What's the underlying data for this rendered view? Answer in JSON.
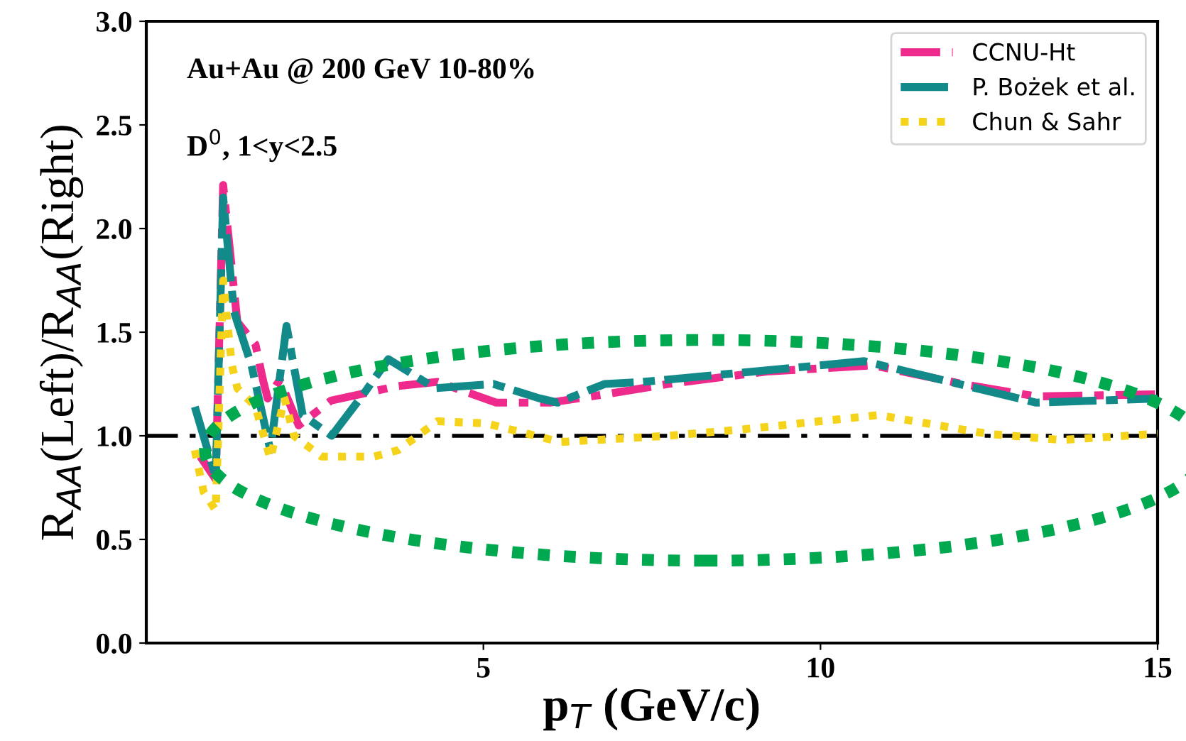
{
  "chart_data": {
    "type": "line",
    "xlabel": "p$_{T}$ (GeV/c)",
    "ylabel": "R$_{AA}$(Left)/R$_{AA}$(Right)",
    "annotations": [
      "Au+Au @ 200 GeV 10-80%",
      "D$^{0}$, 1<y<2.5"
    ],
    "xlim": [
      0,
      15
    ],
    "xticks": [
      5,
      10,
      15
    ],
    "ylim": [
      0,
      3
    ],
    "yticks": [
      {
        "value": 0,
        "label": "0.0"
      },
      {
        "value": 0.5,
        "label": "0.5"
      },
      {
        "value": 1,
        "label": "1.0"
      },
      {
        "value": 1.5,
        "label": "1.5"
      },
      {
        "value": 2,
        "label": "2.0"
      },
      {
        "value": 2.5,
        "label": "2.5"
      },
      {
        "value": 3,
        "label": "3.0"
      }
    ],
    "grid": false,
    "legend": "top right",
    "marker": "none",
    "ref_lines": [
      {
        "axis": "y",
        "value": 1,
        "label": null,
        "color": "#000000",
        "line_style": "dashdot"
      }
    ],
    "series": [
      {
        "name": "CCNU-Ht",
        "color": "#ee2a8c",
        "line_style": "dashed",
        "x": [
          0.8,
          1.03,
          1.14,
          1.35,
          1.62,
          1.73,
          1.8,
          1.98,
          2.26,
          2.74,
          3.73,
          4.32,
          5.19,
          5.99,
          6.8,
          7.74,
          9.2,
          10.78,
          12.1,
          13.2,
          15
        ],
        "values": [
          0.9,
          0.79,
          2.21,
          1.55,
          1.44,
          1.27,
          1.18,
          1.27,
          1.05,
          1.17,
          1.24,
          1.26,
          1.16,
          1.16,
          1.2,
          1.25,
          1.31,
          1.34,
          1.25,
          1.19,
          1.2
        ]
      },
      {
        "name": "P. Bożek et al.",
        "color": "#138a8a",
        "line_style": "dashdot",
        "x": [
          0.72,
          1.03,
          1.14,
          1.3,
          1.56,
          1.84,
          2.08,
          2.32,
          2.75,
          3.24,
          3.59,
          4.28,
          5.15,
          5.84,
          6.1,
          6.8,
          7.36,
          10.65,
          13.2,
          15
        ],
        "values": [
          1.14,
          0.8,
          2.15,
          1.6,
          1.34,
          0.93,
          1.53,
          1.1,
          1.0,
          1.21,
          1.37,
          1.23,
          1.25,
          1.18,
          1.16,
          1.25,
          1.26,
          1.36,
          1.16,
          1.18
        ]
      },
      {
        "name": "Chun & Sahr",
        "color": "#f5d31a",
        "line_style": "dotted",
        "x": [
          0.72,
          0.85,
          1.03,
          1.14,
          1.2,
          1.27,
          1.35,
          1.62,
          1.84,
          2.05,
          2.19,
          2.6,
          3.38,
          3.73,
          4.32,
          5.04,
          6.14,
          7.74,
          8.82,
          10.86,
          12.47,
          13.57,
          15
        ],
        "values": [
          0.93,
          0.73,
          0.64,
          1.75,
          1.55,
          1.34,
          1.23,
          1.14,
          0.89,
          1.18,
          1.0,
          0.9,
          0.9,
          0.93,
          1.07,
          1.06,
          0.97,
          1.0,
          1.03,
          1.1,
          1.01,
          0.98,
          1.01
        ]
      }
    ]
  }
}
